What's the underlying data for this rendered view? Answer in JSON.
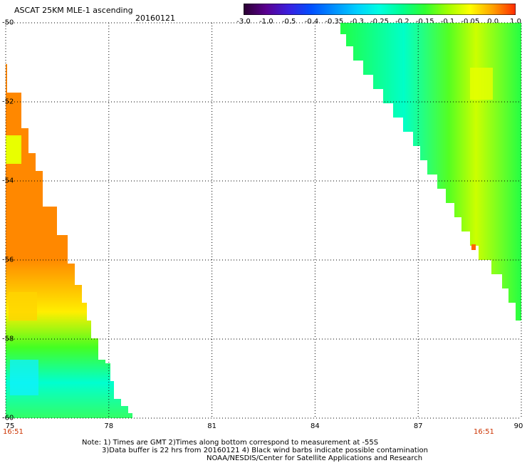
{
  "header": {
    "title": "ASCAT 25KM MLE-1 ascending",
    "date": "20160121"
  },
  "colorbar": {
    "labels": [
      "-3.0",
      "-1.0",
      "-0.5",
      "-0.4",
      "-0.35",
      "-0.3",
      "-0.25",
      "-0.2",
      "-0.15",
      "-0.1",
      "-0.05",
      "0.0",
      "1.0"
    ],
    "colors": [
      "#2a0030",
      "#5a0090",
      "#3a20e0",
      "#0050ff",
      "#0090ff",
      "#00d0ff",
      "#00ffe0",
      "#00ff90",
      "#30ff30",
      "#a0ff00",
      "#ffff00",
      "#ffa000",
      "#ff2a00"
    ]
  },
  "map": {
    "lon_labels": [
      "75",
      "78",
      "81",
      "84",
      "87",
      "90"
    ],
    "lat_labels": [
      "-50",
      "-52",
      "-54",
      "-56",
      "-58",
      "-60"
    ],
    "lon_range": [
      75,
      90
    ],
    "lat_range": [
      -50,
      -60
    ],
    "gridlines": true,
    "swath_colors": {
      "orange": "#ff8800",
      "yellow": "#ffff00",
      "green": "#22ff22",
      "cyan": "#00ffe0",
      "lightgreen": "#90ff30"
    }
  },
  "times": {
    "left": "16:51",
    "right": "16:51"
  },
  "notes": {
    "line1": "Note: 1) Times are GMT 2)Times along bottom correspond to measurement at -55S",
    "line2": "3)Data buffer is 22 hrs from 20160121 4) Black wind barbs indicate possible contamination",
    "line3": "NOAA/NESDIS/Center for Satellite Applications and Research"
  }
}
